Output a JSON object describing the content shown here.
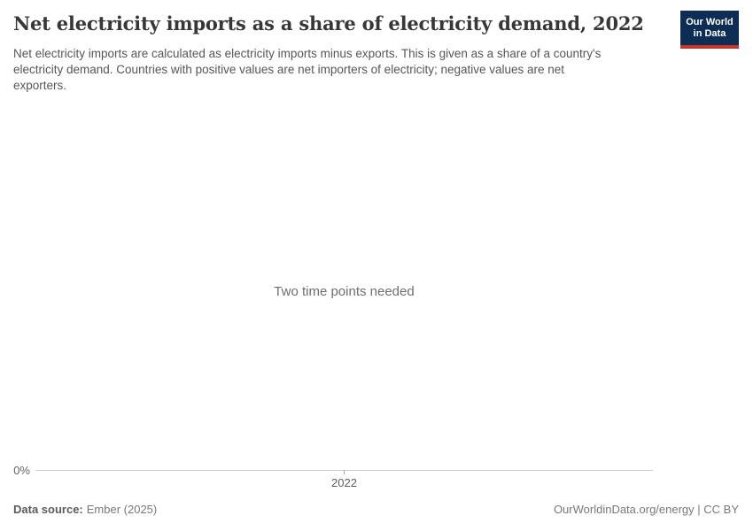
{
  "header": {
    "title": "Net electricity imports as a share of electricity demand, 2022",
    "subtitle_lines": [
      "Net electricity imports are calculated as electricity imports minus exports. This is given as a share of a country's",
      "electricity demand. Countries with positive values are net importers of electricity; negative values are net",
      "exporters."
    ],
    "logo": {
      "line1": "Our World",
      "line2": "in Data"
    }
  },
  "chart": {
    "empty_state_message": "Two time points needed",
    "y_axis_label": "0%",
    "x_tick_label": "2022"
  },
  "footer": {
    "data_source_label": "Data source:",
    "data_source_value": "Ember (2025)",
    "attribution": "OurWorldinData.org/energy | CC BY"
  },
  "colors": {
    "logo_background": "#0d2d55",
    "logo_stripe": "#cf342b",
    "axis_line": "#cbcbcb",
    "title_text": "#373737",
    "subtitle_text": "#565656",
    "muted_text": "#6e6e6e"
  },
  "chart_data": {
    "type": "line",
    "title": "Net electricity imports as a share of electricity demand, 2022",
    "subtitle": "Net electricity imports are calculated as electricity imports minus exports. This is given as a share of a country's electricity demand. Countries with positive values are net importers of electricity; negative values are net exporters.",
    "x_tick_labels": [
      "2022"
    ],
    "y_tick_labels": [
      "0%"
    ],
    "series": [],
    "empty_state_message": "Two time points needed",
    "grid": false,
    "legend": "none"
  }
}
